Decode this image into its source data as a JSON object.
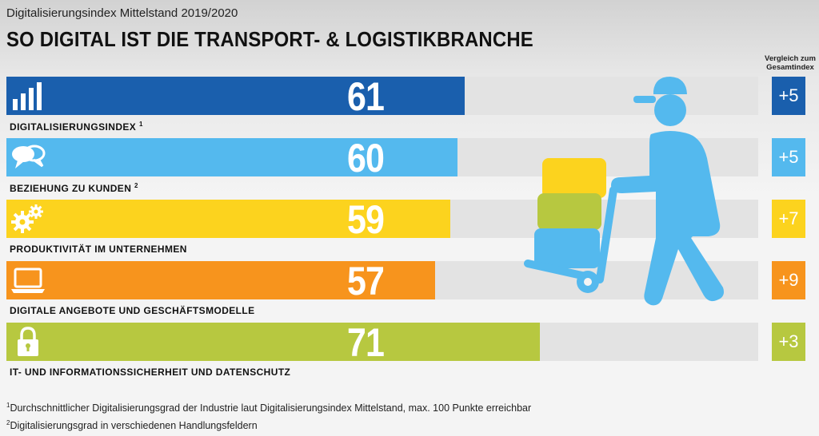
{
  "header": {
    "subtitle": "Digitalisierungsindex Mittelstand 2019/2020",
    "title": "SO DIGITAL IST DIE TRANSPORT- &  LOGISTIKBRANCHE"
  },
  "comparison_header": {
    "line1": "Vergleich zum",
    "line2": "Gesamtindex"
  },
  "chart_data": {
    "type": "bar",
    "orientation": "horizontal",
    "title": "SO DIGITAL IST DIE TRANSPORT- &  LOGISTIKBRANCHE",
    "subtitle": "Digitalisierungsindex Mittelstand 2019/2020",
    "xlim": [
      0,
      100
    ],
    "grid": false,
    "legend": "none",
    "categories": [
      "DIGITALISIERUNGSINDEX",
      "BEZIEHUNG ZU KUNDEN",
      "PRODUKTIVITÄT IM UNTERNEHMEN",
      "DIGITALE ANGEBOTE UND GESCHÄFTSMODELLE",
      "IT- UND INFORMATIONSSICHERHEIT UND DATENSCHUTZ"
    ],
    "footnote_marks": [
      "1",
      "2",
      "",
      "",
      ""
    ],
    "values": [
      61,
      60,
      59,
      57,
      71
    ],
    "comparison_labels": [
      "+5",
      "+5",
      "+7",
      "+9",
      "+3"
    ],
    "comparison_values": [
      5,
      5,
      7,
      9,
      3
    ],
    "colors": [
      "#1a5fad",
      "#54b9ee",
      "#fcd31e",
      "#f7941d",
      "#b7c840"
    ],
    "icons": [
      "bar-chart-icon",
      "speech-bubbles-icon",
      "gears-icon",
      "laptop-icon",
      "padlock-icon"
    ]
  },
  "footnotes": [
    {
      "mark": "1",
      "text": "Durchschnittlicher Digitalisierungsgrad der Industrie laut Digitalisierungsindex Mittelstand, max. 100 Punkte erreichbar"
    },
    {
      "mark": "2",
      "text": "Digitalisierungsgrad in verschiedenen Handlungsfeldern"
    }
  ]
}
